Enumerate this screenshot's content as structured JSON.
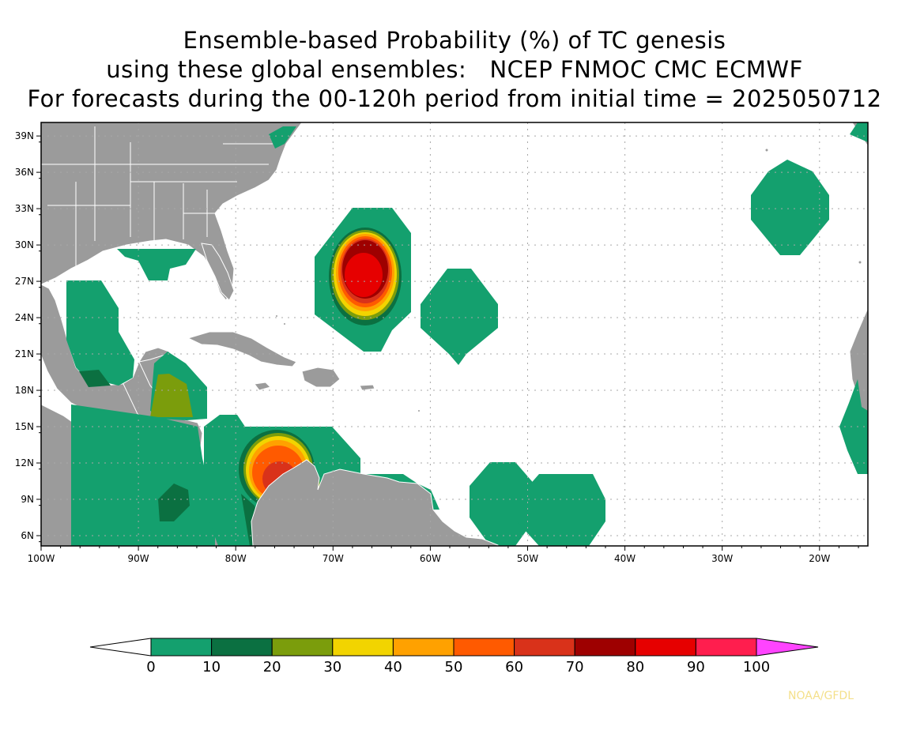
{
  "title": {
    "line1": "Ensemble-based Probability (%) of TC genesis",
    "line2": "using these global ensembles:   NCEP FNMOC CMC ECMWF",
    "line3": "For forecasts during the 00-120h period from initial time = 2025050712"
  },
  "axes": {
    "lon_labels": [
      "100W",
      "90W",
      "80W",
      "70W",
      "60W",
      "50W",
      "40W",
      "30W",
      "20W"
    ],
    "lat_labels": [
      "39N",
      "36N",
      "33N",
      "30N",
      "27N",
      "24N",
      "21N",
      "18N",
      "15N",
      "12N",
      "9N",
      "6N"
    ]
  },
  "colorbar": {
    "labels": [
      "0",
      "10",
      "20",
      "30",
      "40",
      "50",
      "60",
      "70",
      "80",
      "90",
      "100"
    ],
    "colors": [
      "#14a06e",
      "#0b7041",
      "#7b9d0c",
      "#f2d400",
      "#ffa100",
      "#ff5a00",
      "#d9321a",
      "#9e0000",
      "#e60000",
      "#ff1e4e"
    ],
    "under_color": "#ffffff",
    "over_color": "#ff44ff"
  },
  "colors": {
    "land": "#9b9b9b",
    "coast": "#ffffff",
    "ocean": "#ffffff",
    "grid": "#a0a0a0"
  },
  "credit": "NOAA/GFDL"
}
